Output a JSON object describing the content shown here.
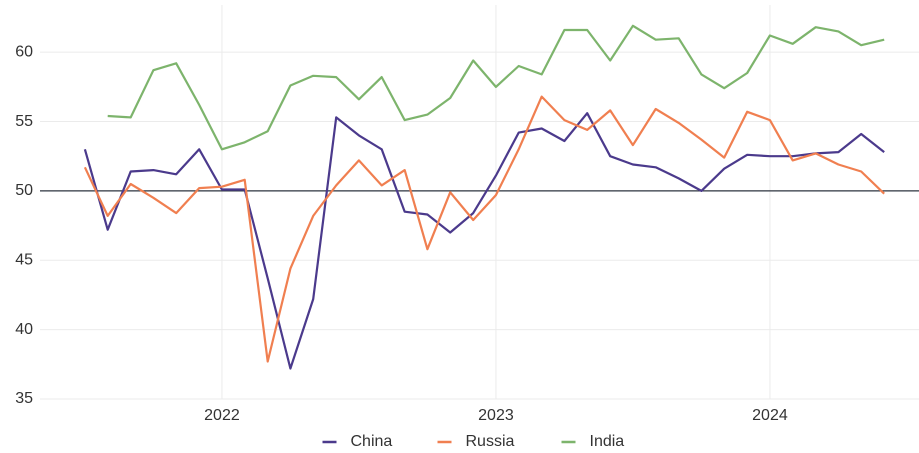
{
  "chart_data": {
    "type": "line",
    "x": [
      2021.5,
      2021.583,
      2021.667,
      2021.75,
      2021.833,
      2021.917,
      2022,
      2022.083,
      2022.167,
      2022.25,
      2022.333,
      2022.417,
      2022.5,
      2022.583,
      2022.667,
      2022.75,
      2022.833,
      2022.917,
      2023,
      2023.083,
      2023.167,
      2023.25,
      2023.333,
      2023.417,
      2023.5,
      2023.583,
      2023.667,
      2023.75,
      2023.833,
      2023.917,
      2024,
      2024.083,
      2024.167,
      2024.25,
      2024.333,
      2024.417
    ],
    "series": [
      {
        "name": "China",
        "color": "#4b3a8c",
        "values": [
          53.0,
          47.2,
          51.4,
          51.5,
          51.2,
          53.0,
          50.1,
          50.1,
          43.7,
          37.2,
          42.2,
          55.3,
          54.0,
          53.0,
          48.5,
          48.3,
          47.0,
          48.4,
          51.1,
          54.2,
          54.5,
          53.6,
          55.6,
          52.5,
          51.9,
          51.7,
          50.9,
          50.0,
          51.6,
          52.6,
          52.5,
          52.5,
          52.7,
          52.8,
          54.1,
          52.8
        ]
      },
      {
        "name": "Russia",
        "color": "#f07f50",
        "values": [
          51.7,
          48.2,
          50.5,
          49.5,
          48.4,
          50.2,
          50.3,
          50.8,
          37.7,
          44.4,
          48.2,
          50.4,
          52.2,
          50.4,
          51.5,
          45.8,
          49.9,
          47.9,
          49.7,
          53.0,
          56.8,
          55.1,
          54.4,
          55.8,
          53.3,
          55.9,
          54.9,
          53.7,
          52.4,
          55.7,
          55.1,
          52.2,
          52.7,
          51.9,
          51.4,
          49.8
        ]
      },
      {
        "name": "India",
        "color": "#7db46c",
        "values": [
          null,
          55.4,
          55.3,
          58.7,
          59.2,
          56.2,
          53.0,
          53.5,
          54.3,
          57.6,
          58.3,
          58.2,
          56.6,
          58.2,
          55.1,
          55.5,
          56.7,
          59.4,
          57.5,
          59.0,
          58.4,
          61.6,
          61.6,
          59.4,
          61.9,
          60.9,
          61.0,
          58.4,
          57.4,
          58.5,
          61.2,
          60.6,
          61.8,
          61.5,
          60.5,
          60.9
        ]
      }
    ],
    "xlim": [
      2021.336,
      2024.544
    ],
    "xticks": [
      2022,
      2023,
      2024
    ],
    "ylim": [
      35,
      63.4
    ],
    "yticks": [
      35,
      40,
      45,
      50,
      55,
      60
    ],
    "reference_line": 50,
    "grid": true,
    "legend": "bottom"
  }
}
